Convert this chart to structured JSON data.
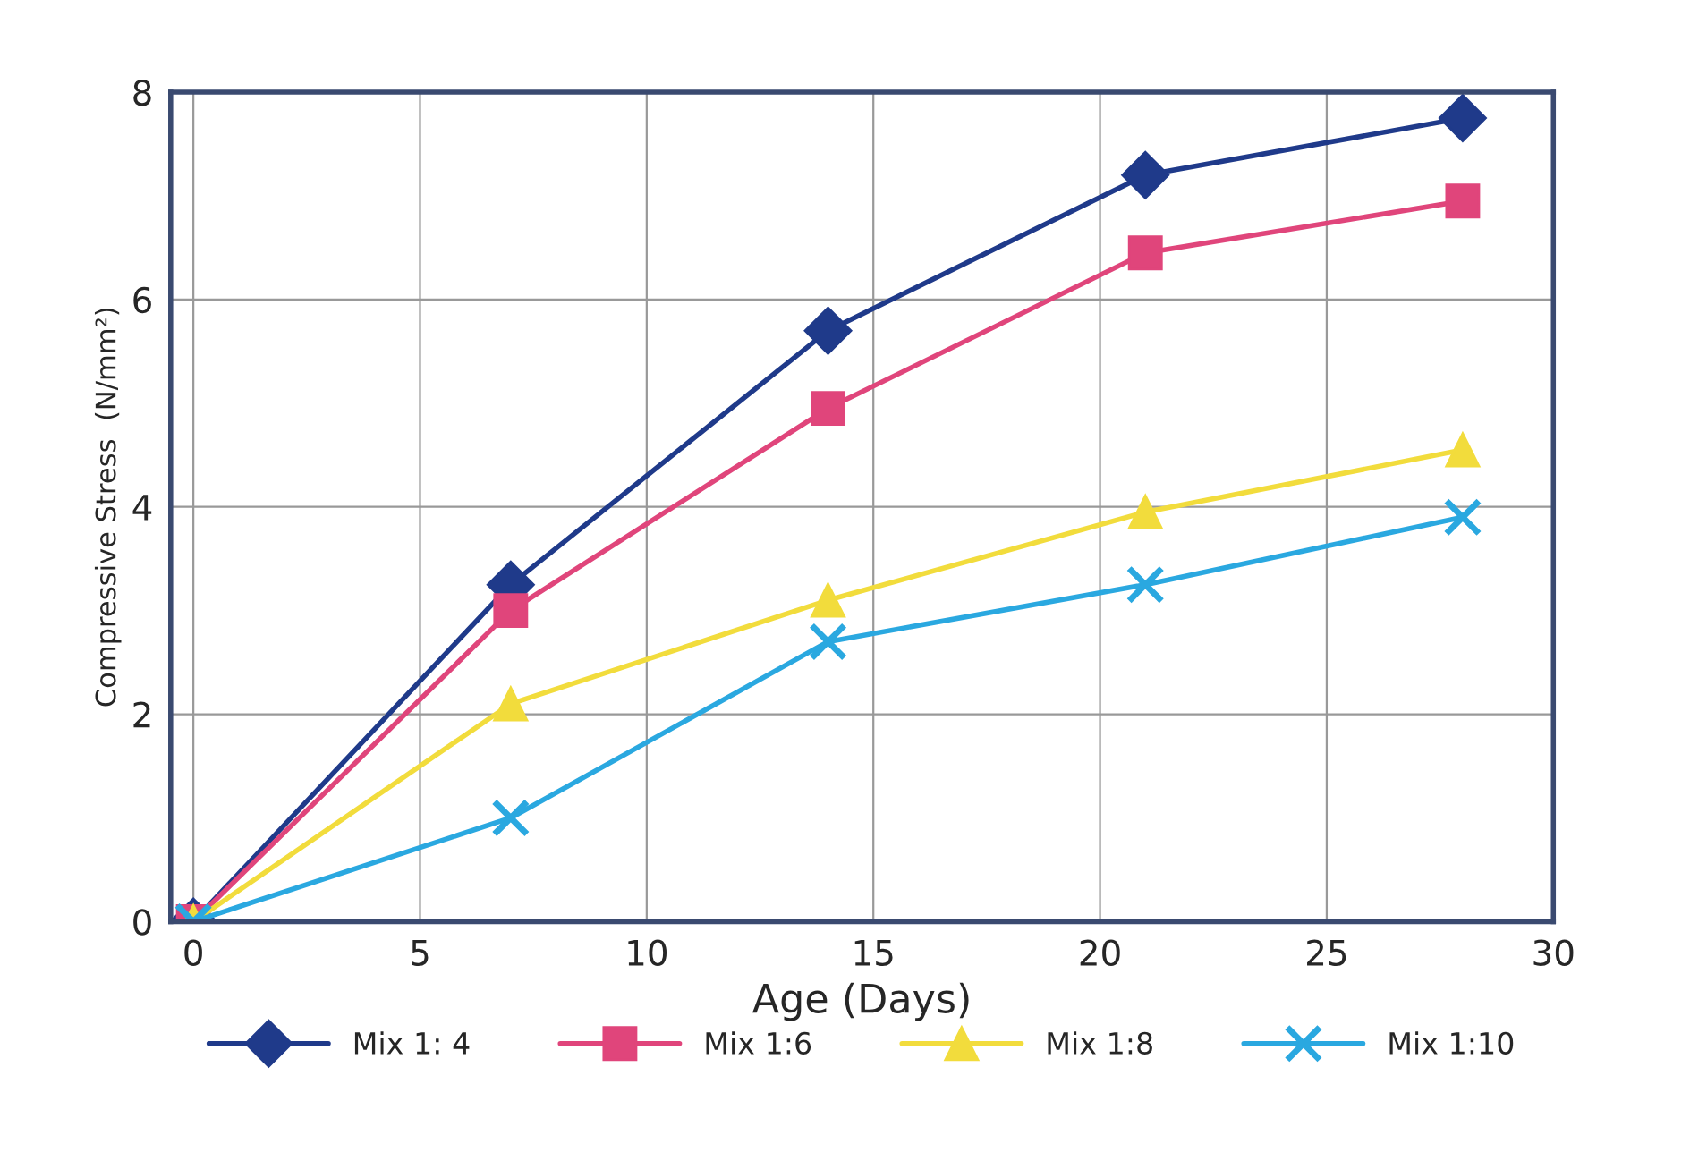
{
  "chart_data": {
    "type": "line",
    "xlabel": "Age (Days)",
    "ylabel": "Compressive Stress  (N/mm²)",
    "x": [
      0,
      7,
      14,
      21,
      28
    ],
    "series": [
      {
        "name": "Mix 1: 4",
        "color": "#1f3a8a",
        "marker": "diamond",
        "values": [
          0,
          3.25,
          5.7,
          7.2,
          7.75
        ]
      },
      {
        "name": "Mix 1:6",
        "color": "#e0457b",
        "marker": "square",
        "values": [
          0,
          3.0,
          4.95,
          6.45,
          6.95
        ]
      },
      {
        "name": "Mix 1:8",
        "color": "#f2dc3c",
        "marker": "triangle",
        "values": [
          0,
          2.1,
          3.1,
          3.95,
          4.55
        ]
      },
      {
        "name": "Mix 1:10",
        "color": "#2aa8e0",
        "marker": "cross",
        "values": [
          0,
          1.0,
          2.7,
          3.25,
          3.9
        ]
      }
    ],
    "xlim": [
      -0.5,
      30
    ],
    "xticks": [
      0,
      5,
      10,
      15,
      20,
      25,
      30
    ],
    "ylim": [
      0,
      8
    ],
    "yticks": [
      0,
      2,
      4,
      6,
      8
    ],
    "grid": true,
    "legend": "bottom",
    "line_style": "solid"
  }
}
